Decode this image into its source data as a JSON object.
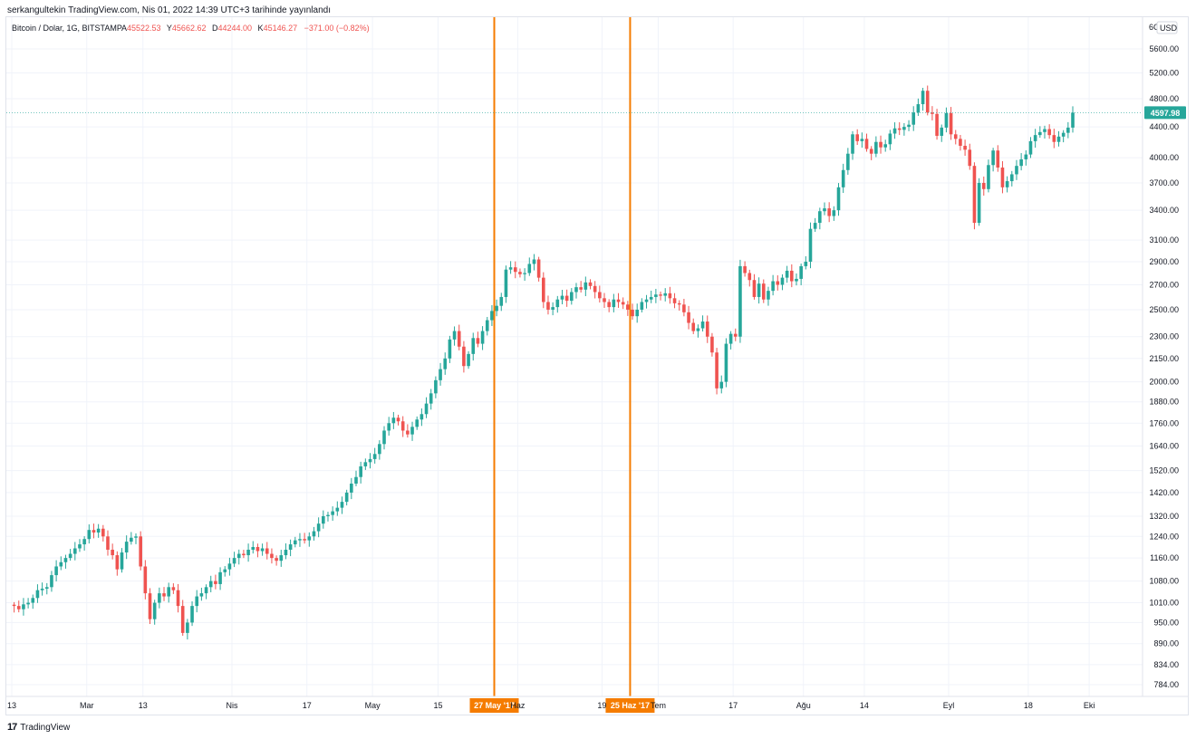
{
  "header": {
    "published": "serkangultekin TradingView.com, Nis 01, 2022 14:39 UTC+3 tarihinde yayınlandı"
  },
  "legend": {
    "symbol": "Bitcoin / Dolar, 1G, BITSTAMP",
    "open_label": "A",
    "open": "45522.53",
    "high_label": "Y",
    "high": "45662.62",
    "low_label": "D",
    "low": "44244.00",
    "close_label": "K",
    "close": "45146.27",
    "change": "−371.00 (−0.82%)"
  },
  "price_axis": {
    "currency": "USD",
    "top_partial": "6C",
    "last_price": "4597.98"
  },
  "footer": {
    "brand": "TradingView",
    "logo_glyph": "17"
  },
  "colors": {
    "up": "#26a69a",
    "down": "#ef5350",
    "marker": "#f57c00",
    "grid": "#f0f3fa",
    "axis_text": "#131722"
  },
  "chart_data": {
    "type": "candlestick",
    "scale": "log",
    "ylim": [
      740,
      6100
    ],
    "price_ticks": [
      {
        "v": 5600,
        "label": "5600.00"
      },
      {
        "v": 5200,
        "label": "5200.00"
      },
      {
        "v": 4800,
        "label": "4800.00"
      },
      {
        "v": 4400,
        "label": "4400.00"
      },
      {
        "v": 4000,
        "label": "4000.00"
      },
      {
        "v": 3700,
        "label": "3700.00"
      },
      {
        "v": 3400,
        "label": "3400.00"
      },
      {
        "v": 3100,
        "label": "3100.00"
      },
      {
        "v": 2900,
        "label": "2900.00"
      },
      {
        "v": 2700,
        "label": "2700.00"
      },
      {
        "v": 2500,
        "label": "2500.00"
      },
      {
        "v": 2300,
        "label": "2300.00"
      },
      {
        "v": 2150,
        "label": "2150.00"
      },
      {
        "v": 2000,
        "label": "2000.00"
      },
      {
        "v": 1880,
        "label": "1880.00"
      },
      {
        "v": 1760,
        "label": "1760.00"
      },
      {
        "v": 1640,
        "label": "1640.00"
      },
      {
        "v": 1520,
        "label": "1520.00"
      },
      {
        "v": 1420,
        "label": "1420.00"
      },
      {
        "v": 1320,
        "label": "1320.00"
      },
      {
        "v": 1240,
        "label": "1240.00"
      },
      {
        "v": 1160,
        "label": "1160.00"
      },
      {
        "v": 1080,
        "label": "1080.00"
      },
      {
        "v": 1010,
        "label": "1010.00"
      },
      {
        "v": 950,
        "label": "950.00"
      },
      {
        "v": 890,
        "label": "890.00"
      },
      {
        "v": 834,
        "label": "834.00"
      },
      {
        "v": 784,
        "label": "784.00"
      }
    ],
    "x_start": "2017-02-13",
    "time_ticks": [
      {
        "date": "2017-02-13",
        "label": "13"
      },
      {
        "date": "2017-03-01",
        "label": "Mar"
      },
      {
        "date": "2017-03-13",
        "label": "13"
      },
      {
        "date": "2017-04-01",
        "label": "Nis"
      },
      {
        "date": "2017-04-17",
        "label": "17"
      },
      {
        "date": "2017-05-01",
        "label": "May"
      },
      {
        "date": "2017-05-15",
        "label": "15"
      },
      {
        "date": "2017-06-01",
        "label": "Haz"
      },
      {
        "date": "2017-06-19",
        "label": "19"
      },
      {
        "date": "2017-07-01",
        "label": "Tem"
      },
      {
        "date": "2017-07-17",
        "label": "17"
      },
      {
        "date": "2017-08-01",
        "label": "Ağu"
      },
      {
        "date": "2017-08-14",
        "label": "14"
      },
      {
        "date": "2017-09-01",
        "label": "Eyl"
      },
      {
        "date": "2017-09-18",
        "label": "18"
      },
      {
        "date": "2017-10-01",
        "label": "Eki"
      }
    ],
    "markers": [
      {
        "date": "2017-05-27",
        "label": "27 May '17"
      },
      {
        "date": "2017-06-25",
        "label": "25 Haz '17"
      }
    ],
    "closes": [
      1000,
      990,
      1005,
      1010,
      1025,
      1050,
      1055,
      1060,
      1100,
      1130,
      1145,
      1160,
      1175,
      1195,
      1210,
      1230,
      1265,
      1255,
      1270,
      1240,
      1190,
      1170,
      1120,
      1180,
      1220,
      1235,
      1240,
      1130,
      1040,
      960,
      1010,
      1040,
      1030,
      1060,
      1050,
      1000,
      920,
      950,
      1000,
      1030,
      1040,
      1060,
      1080,
      1070,
      1110,
      1120,
      1140,
      1160,
      1175,
      1170,
      1190,
      1200,
      1185,
      1195,
      1175,
      1160,
      1150,
      1170,
      1190,
      1210,
      1225,
      1230,
      1225,
      1240,
      1260,
      1290,
      1320,
      1325,
      1340,
      1355,
      1380,
      1420,
      1460,
      1490,
      1540,
      1560,
      1575,
      1600,
      1650,
      1720,
      1760,
      1790,
      1770,
      1720,
      1700,
      1740,
      1780,
      1810,
      1870,
      1930,
      2010,
      2080,
      2150,
      2280,
      2340,
      2230,
      2100,
      2180,
      2290,
      2250,
      2340,
      2420,
      2490,
      2530,
      2600,
      2830,
      2850,
      2810,
      2790,
      2800,
      2880,
      2920,
      2760,
      2560,
      2500,
      2520,
      2580,
      2610,
      2570,
      2640,
      2680,
      2660,
      2720,
      2690,
      2640,
      2590,
      2560,
      2520,
      2580,
      2560,
      2540,
      2500,
      2450,
      2500,
      2560,
      2580,
      2600,
      2620,
      2610,
      2630,
      2590,
      2550,
      2540,
      2480,
      2400,
      2340,
      2360,
      2410,
      2300,
      2190,
      1960,
      2000,
      2250,
      2320,
      2300,
      2860,
      2800,
      2740,
      2600,
      2710,
      2580,
      2650,
      2730,
      2700,
      2760,
      2820,
      2730,
      2750,
      2860,
      2900,
      3210,
      3270,
      3390,
      3420,
      3340,
      3400,
      3650,
      3850,
      4050,
      4300,
      4210,
      4240,
      4110,
      4050,
      4200,
      4130,
      4170,
      4310,
      4380,
      4360,
      4400,
      4430,
      4600,
      4720,
      4920,
      4600,
      4580,
      4280,
      4390,
      4590,
      4300,
      4240,
      4150,
      4100,
      3900,
      3270,
      3700,
      3630,
      3910,
      4090,
      3880,
      3650,
      3720,
      3800,
      3900,
      3980,
      4040,
      4210,
      4290,
      4330,
      4370,
      4290,
      4200,
      4270,
      4320,
      4390,
      4597.98
    ]
  }
}
